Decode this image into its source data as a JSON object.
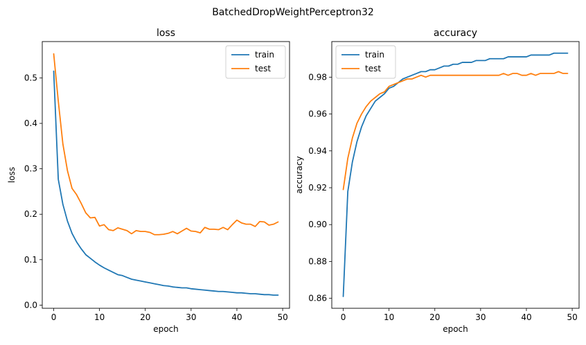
{
  "figure": {
    "suptitle": "BatchedDropWeightPerceptron32"
  },
  "chart_data": [
    {
      "type": "line",
      "title": "loss",
      "xlabel": "epoch",
      "ylabel": "loss",
      "xlim": [
        -2.5,
        51.5
      ],
      "ylim": [
        -0.007,
        0.58
      ],
      "xticks": [
        0,
        10,
        20,
        30,
        40,
        50
      ],
      "yticks": [
        0.0,
        0.1,
        0.2,
        0.3,
        0.4,
        0.5
      ],
      "ytick_labels": [
        "0.0",
        "0.1",
        "0.2",
        "0.3",
        "0.4",
        "0.5"
      ],
      "legend": "top-right",
      "grid": false,
      "x": [
        0,
        1,
        2,
        3,
        4,
        5,
        6,
        7,
        8,
        9,
        10,
        11,
        12,
        13,
        14,
        15,
        16,
        17,
        18,
        19,
        20,
        21,
        22,
        23,
        24,
        25,
        26,
        27,
        28,
        29,
        30,
        31,
        32,
        33,
        34,
        35,
        36,
        37,
        38,
        39,
        40,
        41,
        42,
        43,
        44,
        45,
        46,
        47,
        48,
        49
      ],
      "series": [
        {
          "name": "train",
          "color": "#1f77b4",
          "values": [
            0.515,
            0.277,
            0.222,
            0.185,
            0.158,
            0.139,
            0.124,
            0.111,
            0.103,
            0.095,
            0.088,
            0.082,
            0.077,
            0.072,
            0.067,
            0.065,
            0.061,
            0.057,
            0.055,
            0.053,
            0.051,
            0.049,
            0.047,
            0.045,
            0.043,
            0.042,
            0.04,
            0.039,
            0.038,
            0.038,
            0.036,
            0.035,
            0.034,
            0.033,
            0.032,
            0.031,
            0.03,
            0.03,
            0.029,
            0.028,
            0.027,
            0.027,
            0.026,
            0.025,
            0.025,
            0.024,
            0.023,
            0.023,
            0.022,
            0.022
          ]
        },
        {
          "name": "test",
          "color": "#ff7f0e",
          "values": [
            0.553,
            0.449,
            0.355,
            0.296,
            0.257,
            0.243,
            0.224,
            0.203,
            0.192,
            0.193,
            0.174,
            0.177,
            0.166,
            0.164,
            0.17,
            0.167,
            0.164,
            0.157,
            0.164,
            0.162,
            0.162,
            0.16,
            0.155,
            0.155,
            0.156,
            0.158,
            0.162,
            0.157,
            0.163,
            0.169,
            0.163,
            0.162,
            0.159,
            0.171,
            0.167,
            0.167,
            0.166,
            0.171,
            0.166,
            0.177,
            0.187,
            0.181,
            0.178,
            0.178,
            0.173,
            0.184,
            0.183,
            0.176,
            0.178,
            0.183
          ]
        }
      ]
    },
    {
      "type": "line",
      "title": "accuracy",
      "xlabel": "epoch",
      "ylabel": "accuracy",
      "xlim": [
        -2.5,
        51.5
      ],
      "ylim": [
        0.8546,
        0.9993
      ],
      "xticks": [
        0,
        10,
        20,
        30,
        40,
        50
      ],
      "yticks": [
        0.86,
        0.88,
        0.9,
        0.92,
        0.94,
        0.96,
        0.98
      ],
      "ytick_labels": [
        "0.86",
        "0.88",
        "0.90",
        "0.92",
        "0.94",
        "0.96",
        "0.98"
      ],
      "legend": "top-left",
      "grid": false,
      "x": [
        0,
        1,
        2,
        3,
        4,
        5,
        6,
        7,
        8,
        9,
        10,
        11,
        12,
        13,
        14,
        15,
        16,
        17,
        18,
        19,
        20,
        21,
        22,
        23,
        24,
        25,
        26,
        27,
        28,
        29,
        30,
        31,
        32,
        33,
        34,
        35,
        36,
        37,
        38,
        39,
        40,
        41,
        42,
        43,
        44,
        45,
        46,
        47,
        48,
        49
      ],
      "series": [
        {
          "name": "train",
          "color": "#1f77b4",
          "values": [
            0.861,
            0.918,
            0.934,
            0.945,
            0.953,
            0.959,
            0.963,
            0.967,
            0.969,
            0.971,
            0.974,
            0.975,
            0.977,
            0.979,
            0.98,
            0.981,
            0.982,
            0.983,
            0.983,
            0.984,
            0.984,
            0.985,
            0.986,
            0.986,
            0.987,
            0.987,
            0.988,
            0.988,
            0.988,
            0.989,
            0.989,
            0.989,
            0.99,
            0.99,
            0.99,
            0.99,
            0.991,
            0.991,
            0.991,
            0.991,
            0.991,
            0.992,
            0.992,
            0.992,
            0.992,
            0.992,
            0.993,
            0.993,
            0.993,
            0.993
          ]
        },
        {
          "name": "test",
          "color": "#ff7f0e",
          "values": [
            0.919,
            0.936,
            0.947,
            0.955,
            0.96,
            0.964,
            0.967,
            0.969,
            0.971,
            0.972,
            0.975,
            0.976,
            0.977,
            0.978,
            0.979,
            0.979,
            0.98,
            0.981,
            0.98,
            0.981,
            0.981,
            0.981,
            0.981,
            0.981,
            0.981,
            0.981,
            0.981,
            0.981,
            0.981,
            0.981,
            0.981,
            0.981,
            0.981,
            0.981,
            0.981,
            0.982,
            0.981,
            0.982,
            0.982,
            0.981,
            0.981,
            0.982,
            0.981,
            0.982,
            0.982,
            0.982,
            0.982,
            0.983,
            0.982,
            0.982
          ]
        }
      ]
    }
  ]
}
